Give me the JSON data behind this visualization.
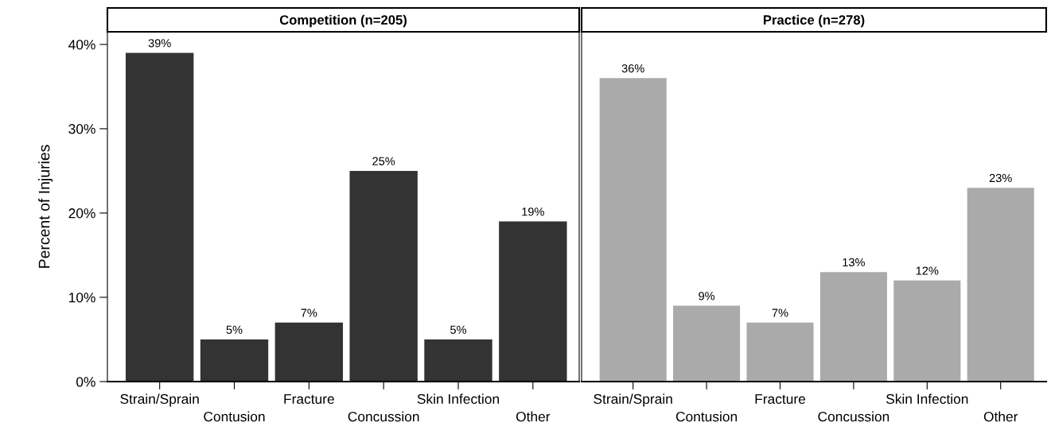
{
  "chart_data": [
    {
      "type": "bar",
      "title": "Competition (n=205)",
      "ylabel": "Percent of Injuries",
      "categories": [
        "Strain/Sprain",
        "Contusion",
        "Fracture",
        "Concussion",
        "Skin Infection",
        "Other"
      ],
      "values": [
        39,
        5,
        7,
        25,
        5,
        19
      ],
      "color": "#333333",
      "data_labels": true,
      "value_labels": [
        "39%",
        "5%",
        "7%",
        "25%",
        "5%",
        "19%"
      ],
      "ylim": [
        0,
        41.5
      ],
      "yticks": [
        {
          "value": 0,
          "label": "0%"
        },
        {
          "value": 10,
          "label": "10%"
        },
        {
          "value": 20,
          "label": "20%"
        },
        {
          "value": 30,
          "label": "30%"
        },
        {
          "value": 40,
          "label": "40%"
        }
      ],
      "grid": false
    },
    {
      "type": "bar",
      "title": "Practice (n=278)",
      "categories": [
        "Strain/Sprain",
        "Contusion",
        "Fracture",
        "Concussion",
        "Skin Infection",
        "Other"
      ],
      "values": [
        36,
        9,
        7,
        13,
        12,
        23
      ],
      "color": "#aaaaaa",
      "data_labels": true,
      "value_labels": [
        "36%",
        "9%",
        "7%",
        "13%",
        "12%",
        "23%"
      ],
      "ylim": [
        0,
        41.5
      ],
      "tick_labels": "x",
      "grid": false
    }
  ]
}
